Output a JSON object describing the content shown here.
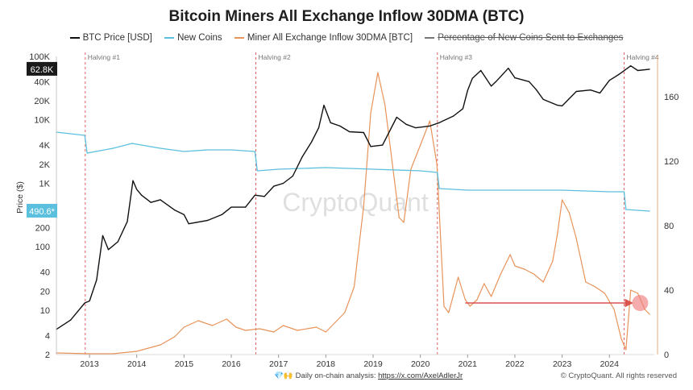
{
  "chart_data": {
    "type": "line",
    "title": "Bitcoin Miners All Exchange Inflow 30DMA (BTC)",
    "ylabel": "Price ($)",
    "y_scale_left": "log",
    "ylim_left": [
      2,
      100000
    ],
    "ylim_right": [
      0,
      185
    ],
    "xlim": [
      2012.3,
      2024.95
    ],
    "x_ticks": [
      "2013",
      "2014",
      "2015",
      "2016",
      "2017",
      "2018",
      "2019",
      "2020",
      "2021",
      "2022",
      "2023",
      "2024"
    ],
    "y_ticks_left": [
      "100K",
      "40K",
      "20K",
      "10K",
      "4K",
      "2K",
      "1K",
      "400",
      "200",
      "100",
      "40",
      "20",
      "10",
      "4",
      "2"
    ],
    "y_ticks_right": [
      "160",
      "120",
      "80",
      "40",
      "0"
    ],
    "current_price_label": "62.8K",
    "current_new_coins_label": "490.6*",
    "watermark": "CryptoQuant",
    "grid": false,
    "legend_position": "top",
    "halvings": [
      {
        "label": "Halving #1",
        "x": 2012.91
      },
      {
        "label": "Halving #2",
        "x": 2016.52
      },
      {
        "label": "Halving #3",
        "x": 2020.36
      },
      {
        "label": "Halving #4",
        "x": 2024.31
      }
    ],
    "series": [
      {
        "name": "BTC Price [USD]",
        "color": "#111111",
        "axis": "left",
        "x": [
          2012.3,
          2012.6,
          2012.9,
          2013.0,
          2013.15,
          2013.28,
          2013.4,
          2013.6,
          2013.8,
          2013.92,
          2014.0,
          2014.1,
          2014.3,
          2014.5,
          2014.8,
          2015.0,
          2015.1,
          2015.5,
          2015.8,
          2016.0,
          2016.3,
          2016.5,
          2016.7,
          2016.9,
          2017.1,
          2017.3,
          2017.5,
          2017.7,
          2017.85,
          2017.96,
          2018.1,
          2018.3,
          2018.5,
          2018.8,
          2018.95,
          2019.2,
          2019.5,
          2019.7,
          2019.9,
          2020.2,
          2020.4,
          2020.7,
          2020.9,
          2021.0,
          2021.1,
          2021.28,
          2021.5,
          2021.6,
          2021.86,
          2022.0,
          2022.3,
          2022.45,
          2022.6,
          2022.9,
          2023.0,
          2023.3,
          2023.6,
          2023.8,
          2024.0,
          2024.2,
          2024.45,
          2024.6,
          2024.85
        ],
        "y": [
          5,
          7,
          13,
          14,
          30,
          150,
          90,
          120,
          250,
          1100,
          800,
          650,
          500,
          550,
          380,
          320,
          230,
          260,
          320,
          420,
          420,
          650,
          620,
          900,
          1000,
          1300,
          2600,
          4500,
          7500,
          17000,
          9000,
          8000,
          6500,
          6300,
          3800,
          4000,
          11000,
          8500,
          7500,
          8000,
          9000,
          11500,
          15000,
          29000,
          45000,
          60000,
          34000,
          40000,
          65000,
          46000,
          40000,
          30000,
          21000,
          17000,
          16600,
          28000,
          29500,
          26500,
          42000,
          52000,
          71000,
          60000,
          62800
        ]
      },
      {
        "name": "New Coins",
        "color": "#5bc0de",
        "axis": "right",
        "x": [
          2012.3,
          2012.9,
          2012.95,
          2013.5,
          2013.9,
          2014.5,
          2015.0,
          2015.5,
          2016.0,
          2016.5,
          2016.55,
          2017.0,
          2018.0,
          2019.0,
          2020.0,
          2020.36,
          2020.4,
          2021.0,
          2022.0,
          2023.0,
          2024.0,
          2024.31,
          2024.35,
          2024.85
        ],
        "y": [
          138,
          136,
          125,
          128,
          131,
          128,
          126,
          127,
          127,
          126,
          114,
          115,
          116,
          115,
          114,
          113,
          103,
          102,
          102,
          102,
          101,
          101,
          90,
          89
        ]
      },
      {
        "name": "Miner All Exchange Inflow 30DMA [BTC]",
        "color": "#e8935a",
        "axis": "right",
        "x": [
          2012.3,
          2013.0,
          2013.5,
          2014.0,
          2014.5,
          2014.8,
          2015.0,
          2015.3,
          2015.6,
          2015.9,
          2016.1,
          2016.3,
          2016.6,
          2016.9,
          2017.1,
          2017.4,
          2017.8,
          2018.0,
          2018.2,
          2018.4,
          2018.6,
          2018.8,
          2018.95,
          2019.1,
          2019.25,
          2019.4,
          2019.55,
          2019.65,
          2019.8,
          2020.0,
          2020.2,
          2020.35,
          2020.5,
          2020.6,
          2020.8,
          2020.95,
          2021.05,
          2021.2,
          2021.35,
          2021.5,
          2021.7,
          2021.9,
          2022.0,
          2022.2,
          2022.4,
          2022.6,
          2022.8,
          2022.9,
          2023.0,
          2023.15,
          2023.3,
          2023.5,
          2023.7,
          2023.9,
          2024.1,
          2024.25,
          2024.35,
          2024.45,
          2024.6,
          2024.75,
          2024.85
        ],
        "y": [
          1,
          0.5,
          0.5,
          2,
          6,
          11,
          17,
          21,
          18,
          22,
          17,
          15,
          16,
          14,
          18,
          15,
          17,
          14,
          20,
          26,
          42,
          92,
          150,
          175,
          155,
          120,
          85,
          82,
          115,
          130,
          145,
          118,
          30,
          26,
          48,
          34,
          30,
          34,
          44,
          36,
          50,
          62,
          55,
          53,
          50,
          45,
          58,
          75,
          96,
          88,
          72,
          45,
          42,
          38,
          28,
          10,
          3,
          40,
          38,
          28,
          25
        ]
      }
    ],
    "annotations": [
      {
        "type": "arrow",
        "from_x": 2020.95,
        "to_x": 2024.65,
        "y_right": 32
      }
    ]
  },
  "footer": {
    "text": "Daily on-chain analysis:",
    "url": "https://x.com/AxelAdlerJr",
    "copyright": "© CryptoQuant. All rights reserved"
  }
}
